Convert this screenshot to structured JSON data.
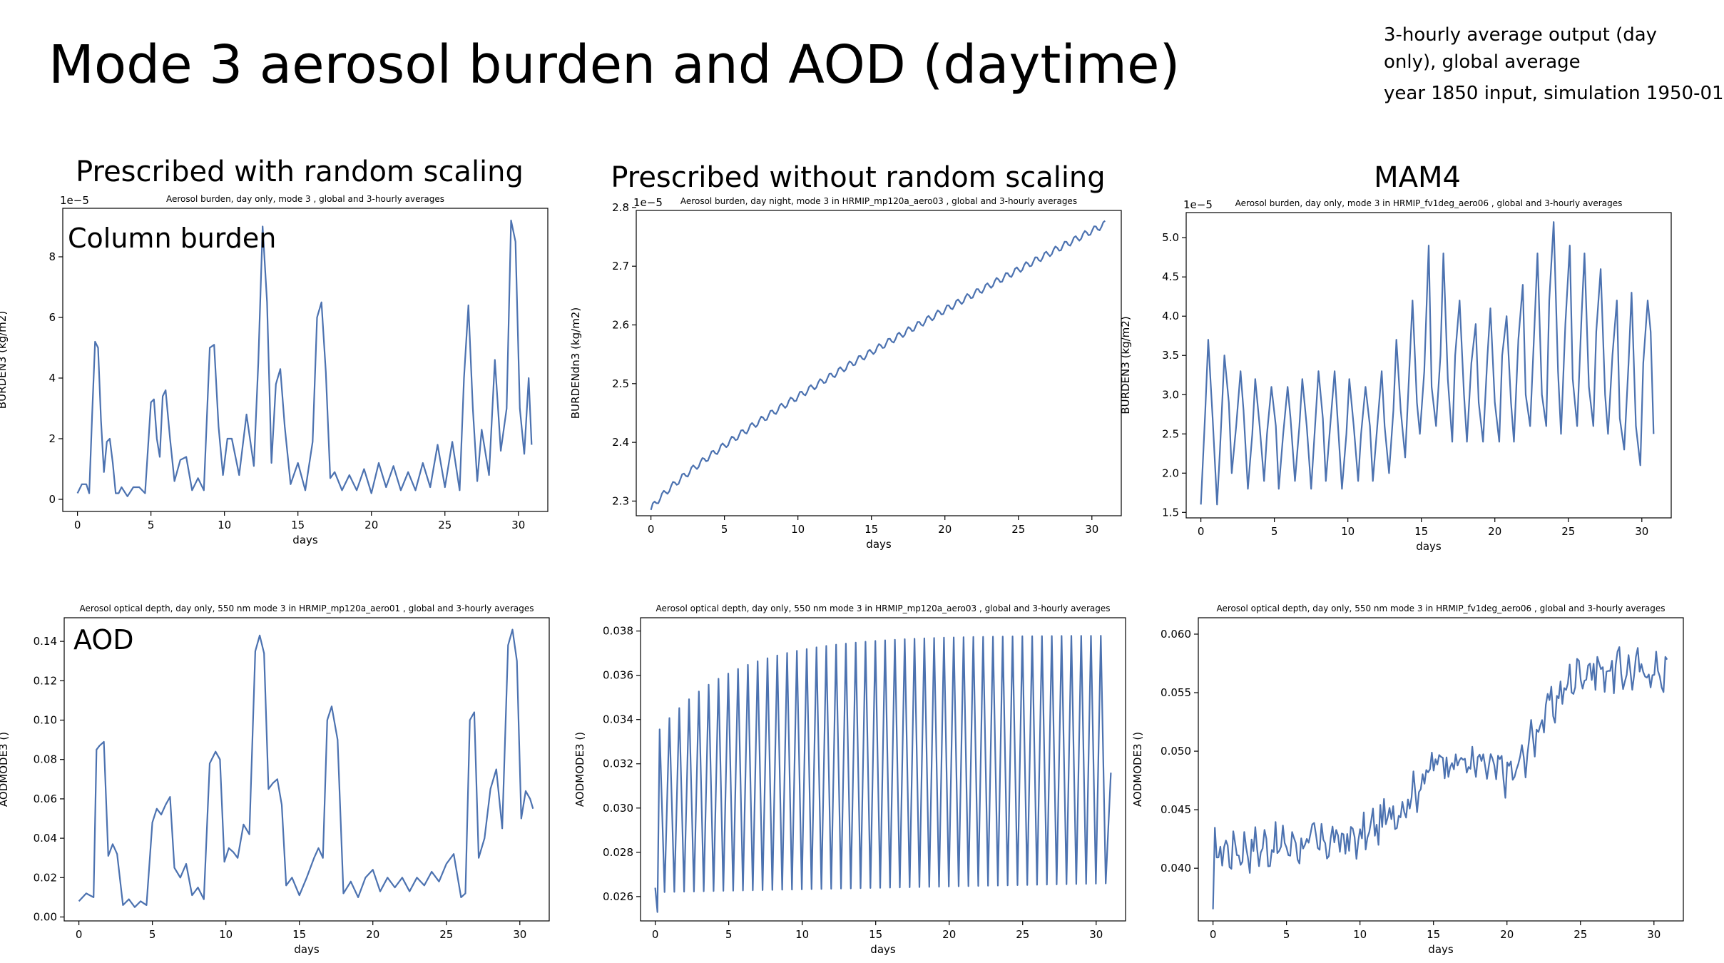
{
  "slide": {
    "title": "Mode 3 aerosol burden and AOD (daytime)",
    "info_line1": "3-hourly average output (day only), global average",
    "info_line2": "year 1850 input, simulation 1950-01"
  },
  "columns": [
    {
      "label": "Prescribed with random scaling"
    },
    {
      "label": "Prescribed without random scaling"
    },
    {
      "label": "MAM4"
    }
  ],
  "overlays": {
    "burden": "Column burden",
    "aod": "AOD"
  },
  "colors": {
    "line": "#4c72b0"
  },
  "chart_data": [
    {
      "id": "p1",
      "type": "line",
      "title": "Aerosol burden, day only, mode 3 , global and 3-hourly averages",
      "xlabel": "days",
      "ylabel": "BURDEN3 (kg/m2)",
      "offset_label": "1e−5",
      "xlim": [
        -1,
        32
      ],
      "ylim": [
        -0.4,
        9.6
      ],
      "xticks": [
        0,
        5,
        10,
        15,
        20,
        25,
        30
      ],
      "yticks": [
        0,
        2,
        4,
        6,
        8
      ],
      "x": [
        0,
        0.3,
        0.6,
        0.8,
        1,
        1.2,
        1.4,
        1.6,
        1.8,
        2,
        2.2,
        2.4,
        2.6,
        2.8,
        3,
        3.4,
        3.8,
        4.2,
        4.6,
        5,
        5.2,
        5.4,
        5.6,
        5.8,
        6,
        6.3,
        6.6,
        7,
        7.4,
        7.8,
        8.2,
        8.6,
        9,
        9.3,
        9.6,
        9.9,
        10.2,
        10.5,
        11,
        11.5,
        12,
        12.3,
        12.6,
        12.9,
        13.2,
        13.5,
        13.8,
        14.1,
        14.5,
        15,
        15.5,
        16,
        16.3,
        16.6,
        16.9,
        17.2,
        17.5,
        18,
        18.5,
        19,
        19.5,
        20,
        20.5,
        21,
        21.5,
        22,
        22.5,
        23,
        23.5,
        24,
        24.5,
        25,
        25.5,
        26,
        26.3,
        26.6,
        26.9,
        27.2,
        27.5,
        28,
        28.4,
        28.8,
        29.2,
        29.5,
        29.8,
        30.1,
        30.4,
        30.7,
        30.9
      ],
      "y": [
        0.2,
        0.5,
        0.5,
        0.2,
        2.8,
        5.2,
        5.0,
        2.6,
        0.9,
        1.9,
        2.0,
        1.2,
        0.2,
        0.2,
        0.4,
        0.1,
        0.4,
        0.4,
        0.2,
        3.2,
        3.3,
        2.0,
        1.4,
        3.4,
        3.6,
        2.0,
        0.6,
        1.3,
        1.4,
        0.3,
        0.7,
        0.3,
        5.0,
        5.1,
        2.4,
        0.8,
        2.0,
        2.0,
        0.8,
        2.8,
        1.1,
        4.5,
        9.0,
        6.5,
        1.2,
        3.8,
        4.3,
        2.4,
        0.5,
        1.2,
        0.3,
        1.9,
        6.0,
        6.5,
        4.2,
        0.7,
        0.9,
        0.3,
        0.8,
        0.3,
        1.0,
        0.2,
        1.2,
        0.4,
        1.1,
        0.3,
        0.9,
        0.3,
        1.2,
        0.4,
        1.8,
        0.4,
        1.9,
        0.3,
        4.0,
        6.4,
        3.0,
        0.6,
        2.3,
        0.8,
        4.6,
        1.6,
        3.0,
        9.2,
        8.5,
        3.0,
        1.5,
        4.0,
        1.8
      ]
    },
    {
      "id": "p2",
      "type": "line",
      "title": "Aerosol burden, day night, mode 3 in HRMIP_mp120a_aero03 , global and 3-hourly averages",
      "xlabel": "days",
      "ylabel": "BURDENdn3 (kg/m2)",
      "offset_label": "1e−5",
      "xlim": [
        -1,
        32
      ],
      "ylim": [
        2.275,
        2.795
      ],
      "xticks": [
        0,
        5,
        10,
        15,
        20,
        25,
        30
      ],
      "yticks": [
        2.3,
        2.4,
        2.5,
        2.6,
        2.7,
        2.8
      ],
      "generator": {
        "n": 248,
        "t_end": 30.9,
        "c0": 2.285,
        "c_end": 2.772,
        "curve": 0.44,
        "amp": 0.006
      }
    },
    {
      "id": "p3",
      "type": "line",
      "title": "Aerosol burden, day only, mode 3 in HRMIP_fv1deg_aero06 , global and 3-hourly averages",
      "xlabel": "days",
      "ylabel": "BURDEN3 (kg/m2)",
      "offset_label": "1e−5",
      "xlim": [
        -1,
        32
      ],
      "ylim": [
        1.43,
        5.32
      ],
      "xticks": [
        0,
        5,
        10,
        15,
        20,
        25,
        30
      ],
      "yticks": [
        1.5,
        2.0,
        2.5,
        3.0,
        3.5,
        4.0,
        4.5,
        5.0
      ],
      "x": [
        0,
        0.3,
        0.5,
        0.8,
        1.1,
        1.3,
        1.6,
        1.9,
        2.1,
        2.4,
        2.7,
        2.9,
        3.2,
        3.5,
        3.7,
        4,
        4.3,
        4.5,
        4.8,
        5.1,
        5.3,
        5.6,
        5.9,
        6.1,
        6.4,
        6.7,
        6.9,
        7.2,
        7.5,
        7.7,
        8,
        8.3,
        8.5,
        8.8,
        9.1,
        9.3,
        9.6,
        9.9,
        10.1,
        10.4,
        10.7,
        10.9,
        11.2,
        11.5,
        11.7,
        12,
        12.3,
        12.5,
        12.8,
        13.1,
        13.3,
        13.6,
        13.9,
        14.1,
        14.4,
        14.7,
        14.9,
        15.2,
        15.5,
        15.7,
        16,
        16.3,
        16.5,
        16.8,
        17.1,
        17.3,
        17.6,
        17.9,
        18.1,
        18.4,
        18.7,
        18.9,
        19.2,
        19.5,
        19.7,
        20,
        20.3,
        20.5,
        20.8,
        21.1,
        21.3,
        21.6,
        21.9,
        22.1,
        22.4,
        22.7,
        22.9,
        23.2,
        23.5,
        23.7,
        24,
        24.3,
        24.5,
        24.8,
        25.1,
        25.3,
        25.6,
        25.9,
        26.1,
        26.4,
        26.7,
        26.9,
        27.2,
        27.5,
        27.7,
        28,
        28.3,
        28.5,
        28.8,
        29.1,
        29.3,
        29.6,
        29.9,
        30.1,
        30.4,
        30.6,
        30.8
      ],
      "y": [
        1.6,
        2.8,
        3.7,
        2.7,
        1.6,
        2.3,
        3.5,
        2.9,
        2.0,
        2.6,
        3.3,
        2.8,
        1.8,
        2.5,
        3.2,
        2.6,
        1.9,
        2.5,
        3.1,
        2.6,
        1.8,
        2.5,
        3.1,
        2.7,
        1.9,
        2.6,
        3.2,
        2.6,
        1.8,
        2.4,
        3.3,
        2.7,
        1.9,
        2.6,
        3.3,
        2.7,
        1.8,
        2.5,
        3.2,
        2.6,
        1.9,
        2.5,
        3.1,
        2.6,
        1.9,
        2.6,
        3.3,
        2.6,
        2.0,
        2.8,
        3.7,
        2.8,
        2.2,
        3.0,
        4.2,
        2.9,
        2.5,
        3.3,
        4.9,
        3.1,
        2.6,
        3.5,
        4.8,
        3.2,
        2.4,
        3.5,
        4.2,
        3.0,
        2.4,
        3.4,
        3.9,
        2.9,
        2.4,
        3.5,
        4.1,
        2.9,
        2.4,
        3.5,
        4.0,
        2.9,
        2.4,
        3.7,
        4.4,
        3.0,
        2.6,
        3.9,
        4.8,
        3.0,
        2.6,
        4.2,
        5.2,
        3.3,
        2.5,
        3.9,
        4.9,
        3.2,
        2.6,
        4.0,
        4.8,
        3.1,
        2.6,
        3.8,
        4.6,
        3.0,
        2.5,
        3.5,
        4.2,
        2.7,
        2.3,
        3.4,
        4.3,
        2.6,
        2.1,
        3.4,
        4.2,
        3.8,
        2.5
      ]
    },
    {
      "id": "p4",
      "type": "line",
      "title": "Aerosol optical depth, day only, 550 nm mode 3 in HRMIP_mp120a_aero01 , global and 3-hourly averages",
      "xlabel": "days",
      "ylabel": "AODMODE3 ()",
      "offset_label": "",
      "xlim": [
        -1,
        32
      ],
      "ylim": [
        -0.002,
        0.152
      ],
      "xticks": [
        0,
        5,
        10,
        15,
        20,
        25,
        30
      ],
      "yticks": [
        0.0,
        0.02,
        0.04,
        0.06,
        0.08,
        0.1,
        0.12,
        0.14
      ],
      "x": [
        0,
        0.5,
        1.0,
        1.2,
        1.4,
        1.7,
        2.0,
        2.3,
        2.6,
        3.0,
        3.4,
        3.8,
        4.2,
        4.6,
        5.0,
        5.3,
        5.6,
        5.9,
        6.2,
        6.5,
        6.9,
        7.3,
        7.7,
        8.1,
        8.5,
        8.9,
        9.3,
        9.6,
        9.9,
        10.2,
        10.5,
        10.8,
        11.2,
        11.6,
        12.0,
        12.3,
        12.6,
        12.9,
        13.2,
        13.5,
        13.8,
        14.1,
        14.5,
        15.0,
        15.5,
        16.0,
        16.3,
        16.6,
        16.9,
        17.2,
        17.6,
        18.0,
        18.5,
        19.0,
        19.5,
        20.0,
        20.5,
        21.0,
        21.5,
        22.0,
        22.5,
        23.0,
        23.5,
        24.0,
        24.5,
        25.0,
        25.5,
        26.0,
        26.3,
        26.6,
        26.9,
        27.2,
        27.6,
        28.0,
        28.4,
        28.8,
        29.2,
        29.5,
        29.8,
        30.1,
        30.4,
        30.7,
        30.9
      ],
      "y": [
        0.008,
        0.012,
        0.01,
        0.085,
        0.087,
        0.089,
        0.031,
        0.037,
        0.032,
        0.006,
        0.009,
        0.005,
        0.008,
        0.006,
        0.048,
        0.055,
        0.052,
        0.057,
        0.061,
        0.025,
        0.02,
        0.027,
        0.011,
        0.015,
        0.009,
        0.078,
        0.084,
        0.08,
        0.028,
        0.035,
        0.033,
        0.03,
        0.047,
        0.042,
        0.135,
        0.143,
        0.134,
        0.065,
        0.068,
        0.07,
        0.057,
        0.016,
        0.02,
        0.011,
        0.02,
        0.03,
        0.035,
        0.03,
        0.1,
        0.107,
        0.09,
        0.012,
        0.018,
        0.01,
        0.02,
        0.024,
        0.013,
        0.02,
        0.015,
        0.02,
        0.013,
        0.02,
        0.016,
        0.023,
        0.018,
        0.027,
        0.032,
        0.01,
        0.012,
        0.1,
        0.104,
        0.03,
        0.04,
        0.065,
        0.075,
        0.045,
        0.138,
        0.146,
        0.13,
        0.05,
        0.064,
        0.06,
        0.055
      ]
    },
    {
      "id": "p5",
      "type": "line",
      "title": "Aerosol optical depth, day only, 550 nm mode 3 in HRMIP_mp120a_aero03 , global and 3-hourly averages",
      "xlabel": "days",
      "ylabel": "AODMODE3 ()",
      "offset_label": "",
      "xlim": [
        -1,
        32
      ],
      "ylim": [
        0.0249,
        0.0386
      ],
      "xticks": [
        0,
        5,
        10,
        15,
        20,
        25,
        30
      ],
      "yticks": [
        0.026,
        0.028,
        0.03,
        0.032,
        0.034,
        0.036,
        0.038
      ],
      "generator": {
        "period": 0.667,
        "t_end": 31.0,
        "max_start": 0.0333,
        "max_end": 0.0378,
        "min_start": 0.0262,
        "min_end": 0.0266,
        "sat": 6,
        "extra": {
          "x": [
            0,
            0.15
          ],
          "y": [
            0.0264,
            0.0253
          ]
        },
        "last_y": 0.0316
      }
    },
    {
      "id": "p6",
      "type": "line",
      "title": "Aerosol optical depth, day only, 550 nm mode 3 in HRMIP_fv1deg_aero06 , global and 3-hourly averages",
      "xlabel": "days",
      "ylabel": "AODMODE3 ()",
      "offset_label": "",
      "xlim": [
        -1,
        32
      ],
      "ylim": [
        0.0355,
        0.0614
      ],
      "xticks": [
        0,
        5,
        10,
        15,
        20,
        25,
        30
      ],
      "yticks": [
        0.04,
        0.045,
        0.05,
        0.055,
        0.06
      ],
      "generator": {
        "n": 248,
        "t_end": 30.9,
        "levels": [
          [
            0,
            0.0415
          ],
          [
            10,
            0.0425
          ],
          [
            13,
            0.0455
          ],
          [
            15.5,
            0.0495
          ],
          [
            20.5,
            0.048
          ],
          [
            22.5,
            0.053
          ],
          [
            25,
            0.057
          ],
          [
            31,
            0.0568
          ]
        ],
        "noise": 0.0014,
        "first_y": 0.0365
      }
    }
  ]
}
